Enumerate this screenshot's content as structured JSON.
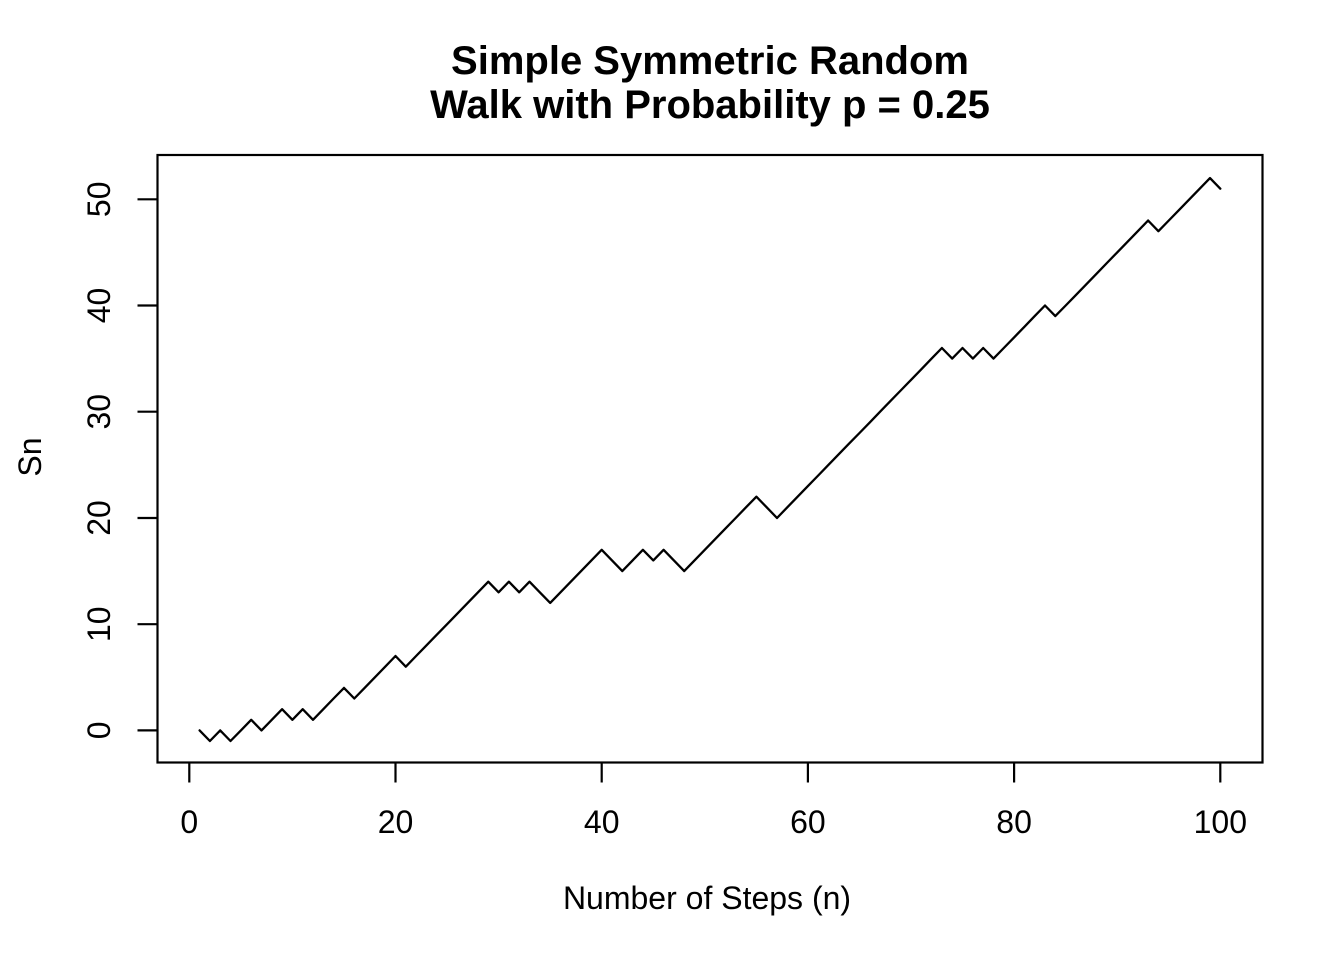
{
  "figure": {
    "background": "#ffffff",
    "line_color": "#000000",
    "text_color": "#000000"
  },
  "chart_data": {
    "type": "line",
    "title_line1": "Simple Symmetric Random",
    "title_line2": "Walk with Probability p = 0.25",
    "xlabel": "Number of Steps (n)",
    "ylabel": "Sn",
    "x_ticks": [
      0,
      20,
      40,
      60,
      80,
      100
    ],
    "y_ticks": [
      0,
      10,
      20,
      30,
      40,
      50
    ],
    "xlim": [
      -3,
      104
    ],
    "ylim": [
      -3,
      54.3
    ],
    "grid": false,
    "legend": false,
    "series": [
      {
        "name": "Sn",
        "x_start": 1,
        "x_step": 1,
        "values": [
          0,
          -1,
          0,
          -1,
          0,
          1,
          0,
          1,
          2,
          1,
          2,
          1,
          2,
          3,
          4,
          3,
          4,
          5,
          6,
          7,
          6,
          7,
          8,
          9,
          10,
          11,
          12,
          13,
          14,
          13,
          14,
          13,
          14,
          13,
          12,
          13,
          14,
          15,
          16,
          17,
          16,
          15,
          16,
          17,
          16,
          17,
          16,
          15,
          16,
          17,
          18,
          19,
          20,
          21,
          22,
          21,
          20,
          21,
          22,
          23,
          24,
          25,
          26,
          27,
          28,
          29,
          30,
          31,
          32,
          33,
          34,
          35,
          36,
          35,
          36,
          35,
          36,
          35,
          36,
          37,
          38,
          39,
          40,
          39,
          40,
          41,
          42,
          43,
          44,
          45,
          46,
          47,
          48,
          47,
          48,
          49,
          50,
          51,
          52,
          51
        ]
      }
    ]
  }
}
